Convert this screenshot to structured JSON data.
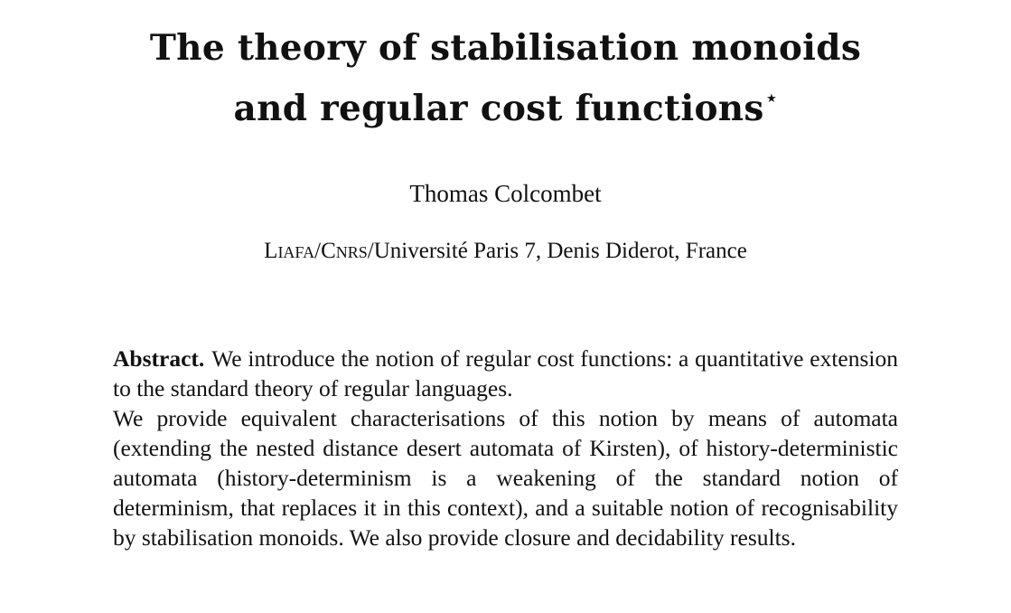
{
  "paper": {
    "title_line1": "The theory of stabilisation monoids",
    "title_line2": "and regular cost functions",
    "title_footnote_mark": "⋆",
    "author": "Thomas Colcombet",
    "affiliation": {
      "org1": "Liafa",
      "sep1": "/",
      "org2": "Cnrs",
      "rest": "/Université Paris 7, Denis Diderot, France"
    },
    "abstract": {
      "label": "Abstract.",
      "para1": "We introduce the notion of regular cost functions: a quanti­tative extension to the standard theory of regular languages.",
      "para2": "We provide equivalent characterisations of this notion by means of au­tomata (extending the nested distance desert automata of Kirsten), of history-deterministic automata (history-determinism is a weakening of the standard notion of determinism, that replaces it in this context), and a suitable notion of recognisability by stabilisation monoids. We also provide closure and decidability results."
    }
  }
}
